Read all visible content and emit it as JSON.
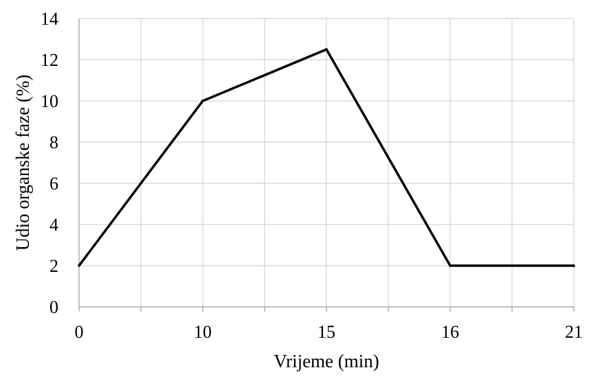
{
  "chart_data": {
    "type": "line",
    "title": "",
    "xlabel": "Vrijeme (min)",
    "ylabel": "Udio organske faze (%)",
    "x_tick_labels": [
      "0",
      "10",
      "15",
      "16",
      "21"
    ],
    "y_tick_labels": [
      "0",
      "2",
      "4",
      "6",
      "8",
      "10",
      "12",
      "14"
    ],
    "ylim": [
      0,
      14
    ],
    "grid": true,
    "legend": "none",
    "series": [
      {
        "x": [
          "0",
          "10",
          "15",
          "16",
          "21"
        ],
        "values": [
          2,
          10,
          12.5,
          2,
          2
        ],
        "color": "#000000"
      }
    ]
  }
}
